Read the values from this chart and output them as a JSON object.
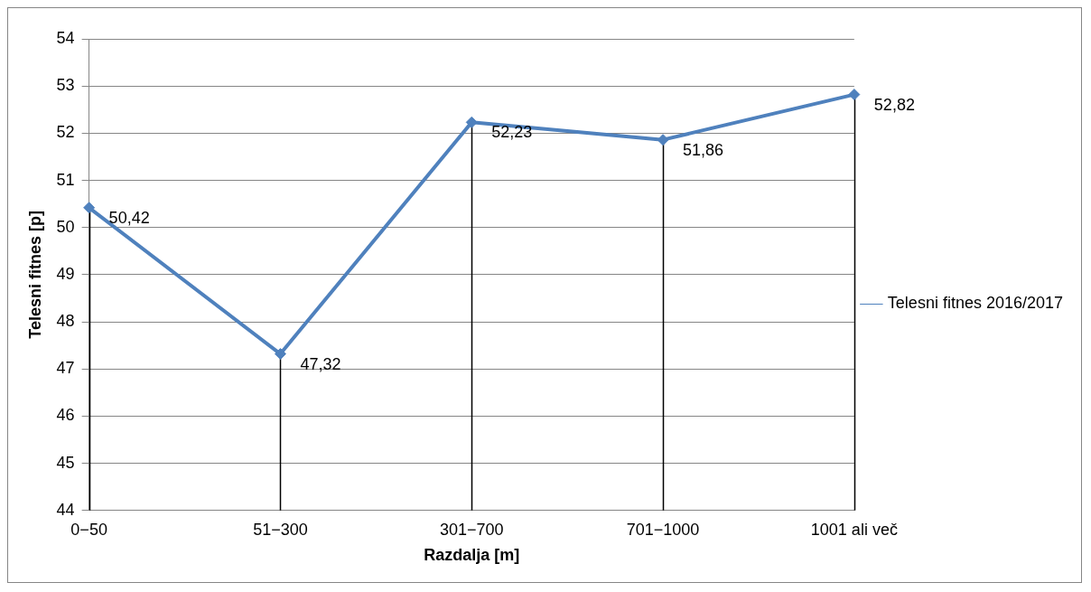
{
  "chart_data": {
    "type": "line",
    "xlabel": "Razdalja [m]",
    "ylabel": "Telesni fitnes [p]",
    "categories": [
      "0−50",
      "51−300",
      "301−700",
      "701−1000",
      "1001 ali več"
    ],
    "series": [
      {
        "name": "Telesni fitnes 2016/2017",
        "color": "#4f81bd",
        "values": [
          50.42,
          47.32,
          52.23,
          51.86,
          52.82
        ],
        "value_labels": [
          "50,42",
          "47,32",
          "52,23",
          "51,86",
          "52,82"
        ]
      }
    ],
    "ylim": [
      44,
      54
    ],
    "yticks": [
      44,
      45,
      46,
      47,
      48,
      49,
      50,
      51,
      52,
      53,
      54
    ],
    "grid": true,
    "legend": "right",
    "marker": "diamond"
  }
}
